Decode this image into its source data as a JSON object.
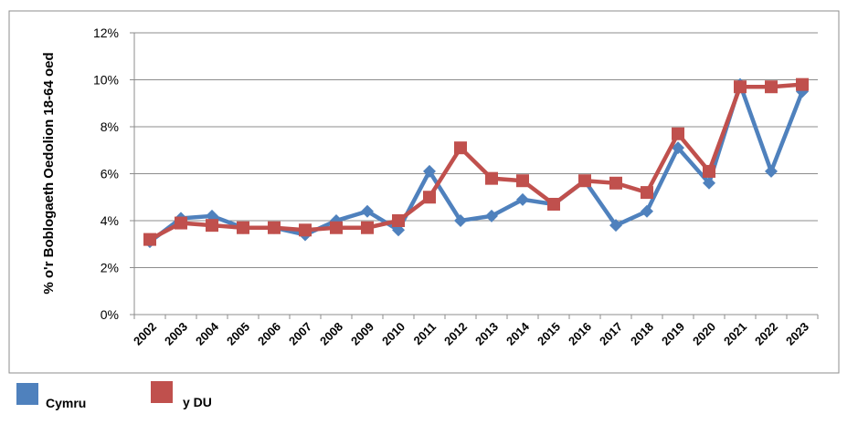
{
  "chart_data": {
    "type": "line",
    "y_label": "% o'r Boblogaeth Oedolion 18-64 oed",
    "categories": [
      "2002",
      "2003",
      "2004",
      "2005",
      "2006",
      "2007",
      "2008",
      "2009",
      "2010",
      "2011",
      "2012",
      "2013",
      "2014",
      "2015",
      "2016",
      "2017",
      "2018",
      "2019",
      "2020",
      "2021",
      "2022",
      "2023"
    ],
    "series": [
      {
        "name": "Cymru",
        "color": "#4f81bd",
        "marker": "diamond",
        "values": [
          3.1,
          4.1,
          4.2,
          3.7,
          3.7,
          3.4,
          4.0,
          4.4,
          3.6,
          6.1,
          4.0,
          4.2,
          4.9,
          4.7,
          5.7,
          3.8,
          4.4,
          7.1,
          5.6,
          9.8,
          6.1,
          9.5
        ]
      },
      {
        "name": "y DU",
        "color": "#c0504d",
        "marker": "square",
        "values": [
          3.2,
          3.9,
          3.8,
          3.7,
          3.7,
          3.6,
          3.7,
          3.7,
          4.0,
          5.0,
          7.1,
          5.8,
          5.7,
          4.7,
          5.7,
          5.6,
          5.2,
          7.7,
          6.1,
          9.7,
          9.7,
          9.8
        ]
      }
    ],
    "ylim": [
      0,
      12
    ],
    "yticks": [
      {
        "value": 0,
        "label": "0%"
      },
      {
        "value": 2,
        "label": "2%"
      },
      {
        "value": 4,
        "label": "4%"
      },
      {
        "value": 6,
        "label": "6%"
      },
      {
        "value": 8,
        "label": "8%"
      },
      {
        "value": 10,
        "label": "10%"
      },
      {
        "value": 12,
        "label": "12%"
      }
    ],
    "grid": true
  }
}
